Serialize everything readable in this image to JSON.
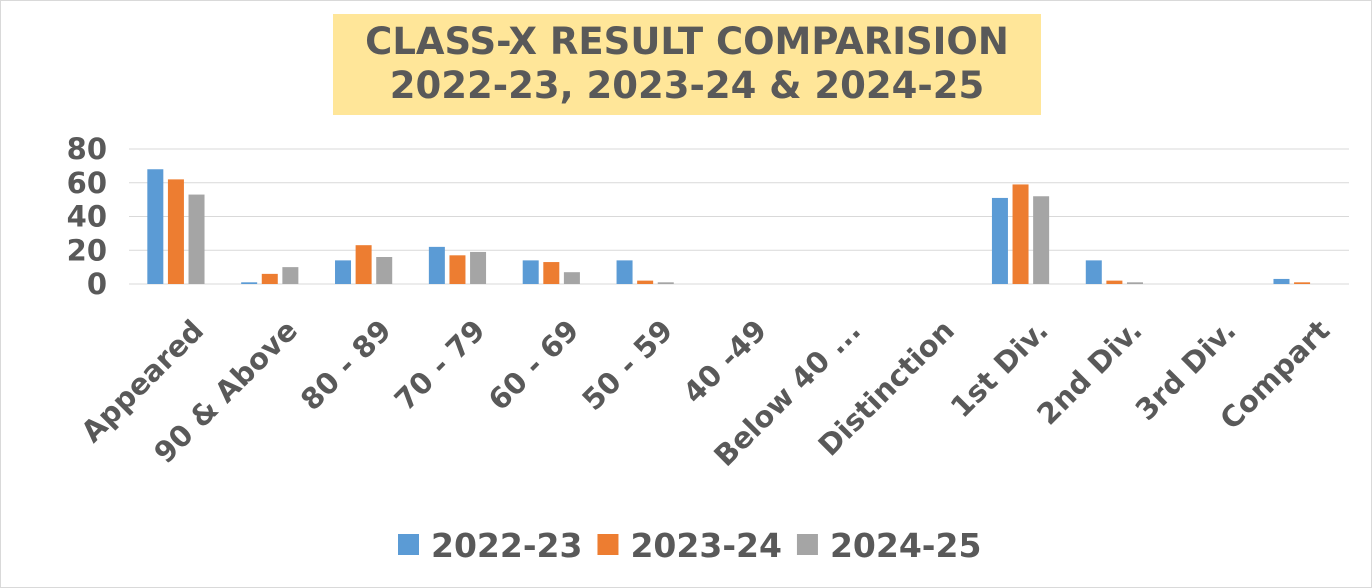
{
  "chart_data": {
    "type": "bar",
    "title_lines": [
      "CLASS-X RESULT COMPARISION",
      "2022-23, 2023-24 & 2024-25"
    ],
    "categories": [
      "Appeared",
      "90 & Above",
      "80 - 89",
      "70 - 79",
      "60 - 69",
      "50 - 59",
      "40 -49",
      "Below 40 ...",
      "Distinction",
      "1st Div.",
      "2nd Div.",
      "3rd Div.",
      "Compart"
    ],
    "series": [
      {
        "name": "2022-23",
        "color": "#5b9bd5",
        "values": [
          68,
          1,
          14,
          22,
          14,
          14,
          0,
          0,
          0,
          51,
          14,
          0,
          3
        ]
      },
      {
        "name": "2023-24",
        "color": "#ed7d31",
        "values": [
          62,
          6,
          23,
          17,
          13,
          2,
          0,
          0,
          0,
          59,
          2,
          0,
          1
        ]
      },
      {
        "name": "2024-25",
        "color": "#a5a5a5",
        "values": [
          53,
          10,
          16,
          19,
          7,
          1,
          0,
          0,
          0,
          52,
          1,
          0,
          0
        ]
      }
    ],
    "yticks": [
      0,
      20,
      40,
      60,
      80
    ],
    "ylim": [
      0,
      80
    ],
    "xlabel": "",
    "ylabel": "",
    "grid": true,
    "legend": "bottom"
  }
}
